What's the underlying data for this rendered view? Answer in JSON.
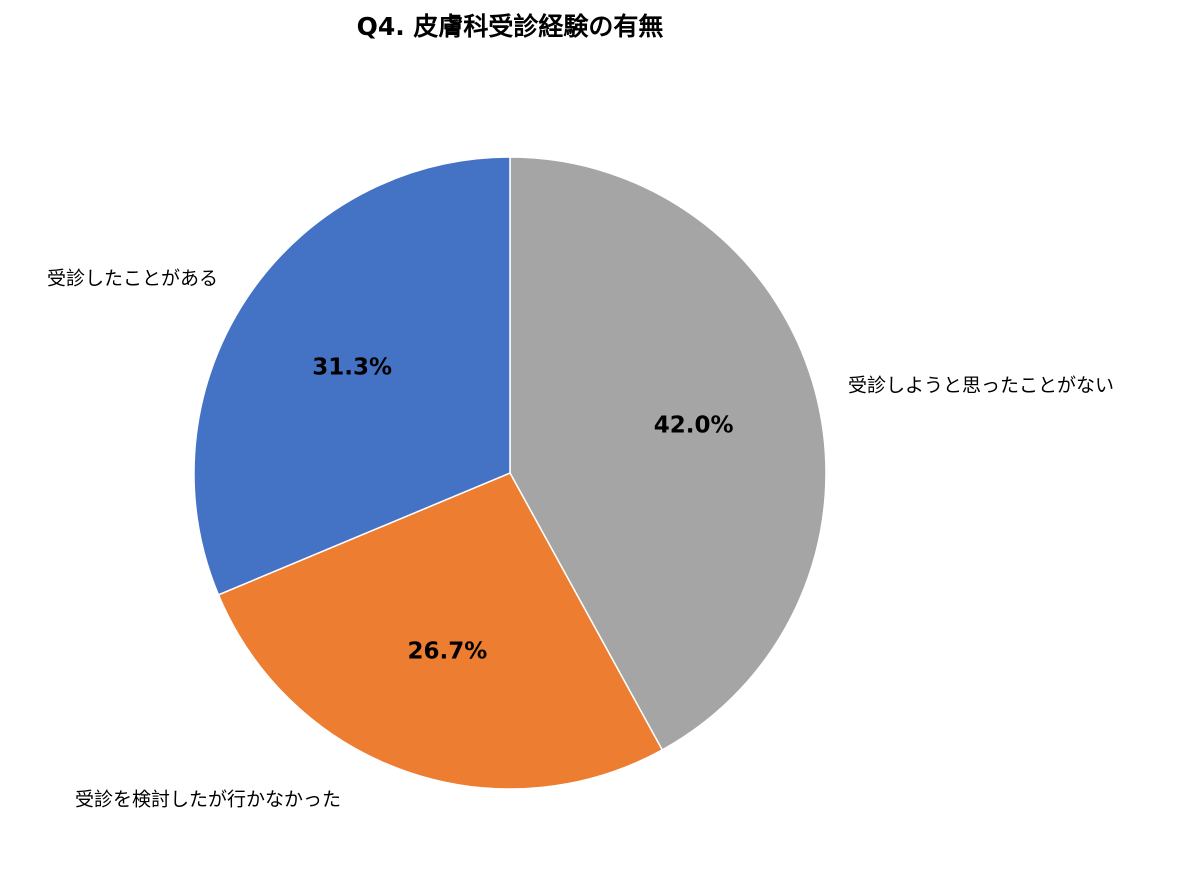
{
  "chart_data": {
    "type": "pie",
    "title": "Q4. 皮膚科受診経験の有無",
    "categories": [
      "受診しようと思ったことがない",
      "受診を検討したが行かなかった",
      "受診したことがある"
    ],
    "values": [
      42.0,
      26.7,
      31.3
    ],
    "value_labels": [
      "42.0%",
      "26.7%",
      "31.3%"
    ],
    "colors": [
      "#a5a5a5",
      "#ed7d31",
      "#4472c4"
    ]
  }
}
